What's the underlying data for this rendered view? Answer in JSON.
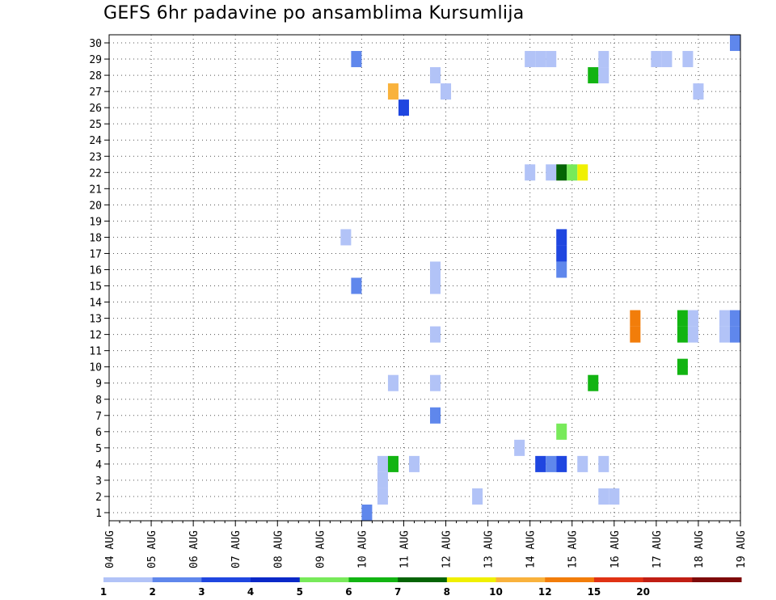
{
  "chart_data": {
    "type": "heatmap",
    "title": "GEFS 6hr padavine po ansamblima Kursumlija",
    "xlabel": "",
    "ylabel": "",
    "x_ticks": [
      "04 AUG",
      "05 AUG",
      "06 AUG",
      "07 AUG",
      "08 AUG",
      "09 AUG",
      "10 AUG",
      "11 AUG",
      "12 AUG",
      "13 AUG",
      "14 AUG",
      "15 AUG",
      "16 AUG",
      "17 AUG",
      "18 AUG",
      "19 AUG"
    ],
    "y_ticks": [
      1,
      2,
      3,
      4,
      5,
      6,
      7,
      8,
      9,
      10,
      11,
      12,
      13,
      14,
      15,
      16,
      17,
      18,
      19,
      20,
      21,
      22,
      23,
      24,
      25,
      26,
      27,
      28,
      29,
      30
    ],
    "x_unit": "6-hour steps from 04 AUG 00Z",
    "xlim": [
      0,
      60
    ],
    "ylim": [
      0.5,
      30.5
    ],
    "grid": true,
    "colorbar": {
      "levels": [
        "1",
        "2",
        "3",
        "4",
        "5",
        "6",
        "7",
        "8",
        "10",
        "12",
        "15",
        "20"
      ],
      "colors": [
        "#b2c3f7",
        "#5f87ec",
        "#1f46e0",
        "#0a28c8",
        "#78ea5a",
        "#12b412",
        "#056405",
        "#f0f000",
        "#f9b23c",
        "#f27d0a",
        "#e03214",
        "#c01e14",
        "#7e0a0a"
      ]
    },
    "cells": [
      {
        "member": 30,
        "step": 59.5,
        "color": "#5f87ec"
      },
      {
        "member": 29,
        "step": 23.5,
        "color": "#5f87ec"
      },
      {
        "member": 29,
        "step": 40,
        "color": "#b2c3f7"
      },
      {
        "member": 29,
        "step": 41,
        "color": "#b2c3f7"
      },
      {
        "member": 29,
        "step": 42,
        "color": "#b2c3f7"
      },
      {
        "member": 29,
        "step": 47,
        "color": "#b2c3f7"
      },
      {
        "member": 29,
        "step": 52,
        "color": "#b2c3f7"
      },
      {
        "member": 29,
        "step": 53,
        "color": "#b2c3f7"
      },
      {
        "member": 29,
        "step": 55,
        "color": "#b2c3f7"
      },
      {
        "member": 28,
        "step": 31,
        "color": "#b2c3f7"
      },
      {
        "member": 28,
        "step": 46,
        "color": "#12b412"
      },
      {
        "member": 28,
        "step": 47,
        "color": "#b2c3f7"
      },
      {
        "member": 27,
        "step": 27,
        "color": "#f9b23c"
      },
      {
        "member": 27,
        "step": 32,
        "color": "#b2c3f7"
      },
      {
        "member": 27,
        "step": 56,
        "color": "#b2c3f7"
      },
      {
        "member": 26,
        "step": 28,
        "color": "#1f46e0"
      },
      {
        "member": 22,
        "step": 40,
        "color": "#b2c3f7"
      },
      {
        "member": 22,
        "step": 42,
        "color": "#b2c3f7"
      },
      {
        "member": 22,
        "step": 43,
        "color": "#056405"
      },
      {
        "member": 22,
        "step": 44,
        "color": "#78ea5a"
      },
      {
        "member": 22,
        "step": 45,
        "color": "#f0f000"
      },
      {
        "member": 18,
        "step": 22.5,
        "color": "#b2c3f7"
      },
      {
        "member": 18,
        "step": 43,
        "color": "#1f46e0"
      },
      {
        "member": 17,
        "step": 43,
        "color": "#1f46e0"
      },
      {
        "member": 16,
        "step": 43,
        "color": "#5f87ec"
      },
      {
        "member": 16,
        "step": 31,
        "color": "#b2c3f7"
      },
      {
        "member": 15,
        "step": 23.5,
        "color": "#5f87ec"
      },
      {
        "member": 15,
        "step": 31,
        "color": "#b2c3f7"
      },
      {
        "member": 13,
        "step": 50,
        "color": "#f27d0a"
      },
      {
        "member": 13,
        "step": 54.5,
        "color": "#12b412"
      },
      {
        "member": 13,
        "step": 55.5,
        "color": "#b2c3f7"
      },
      {
        "member": 13,
        "step": 58.5,
        "color": "#b2c3f7"
      },
      {
        "member": 13,
        "step": 59.5,
        "color": "#5f87ec"
      },
      {
        "member": 12,
        "step": 31,
        "color": "#b2c3f7"
      },
      {
        "member": 12,
        "step": 50,
        "color": "#f27d0a"
      },
      {
        "member": 12,
        "step": 54.5,
        "color": "#12b412"
      },
      {
        "member": 12,
        "step": 55.5,
        "color": "#b2c3f7"
      },
      {
        "member": 12,
        "step": 58.5,
        "color": "#b2c3f7"
      },
      {
        "member": 12,
        "step": 59.5,
        "color": "#5f87ec"
      },
      {
        "member": 10,
        "step": 54.5,
        "color": "#12b412"
      },
      {
        "member": 9,
        "step": 27,
        "color": "#b2c3f7"
      },
      {
        "member": 9,
        "step": 31,
        "color": "#b2c3f7"
      },
      {
        "member": 9,
        "step": 46,
        "color": "#12b412"
      },
      {
        "member": 7,
        "step": 31,
        "color": "#5f87ec"
      },
      {
        "member": 6,
        "step": 43,
        "color": "#78ea5a"
      },
      {
        "member": 5,
        "step": 39,
        "color": "#b2c3f7"
      },
      {
        "member": 4,
        "step": 26,
        "color": "#b2c3f7"
      },
      {
        "member": 4,
        "step": 27,
        "color": "#12b412"
      },
      {
        "member": 4,
        "step": 29,
        "color": "#b2c3f7"
      },
      {
        "member": 4,
        "step": 41,
        "color": "#1f46e0"
      },
      {
        "member": 4,
        "step": 42,
        "color": "#5f87ec"
      },
      {
        "member": 4,
        "step": 43,
        "color": "#1f46e0"
      },
      {
        "member": 4,
        "step": 45,
        "color": "#b2c3f7"
      },
      {
        "member": 4,
        "step": 47,
        "color": "#b2c3f7"
      },
      {
        "member": 3,
        "step": 26,
        "color": "#b2c3f7"
      },
      {
        "member": 2,
        "step": 26,
        "color": "#b2c3f7"
      },
      {
        "member": 2,
        "step": 35,
        "color": "#b2c3f7"
      },
      {
        "member": 2,
        "step": 47,
        "color": "#b2c3f7"
      },
      {
        "member": 2,
        "step": 48,
        "color": "#b2c3f7"
      },
      {
        "member": 1,
        "step": 24.5,
        "color": "#5f87ec"
      }
    ]
  }
}
